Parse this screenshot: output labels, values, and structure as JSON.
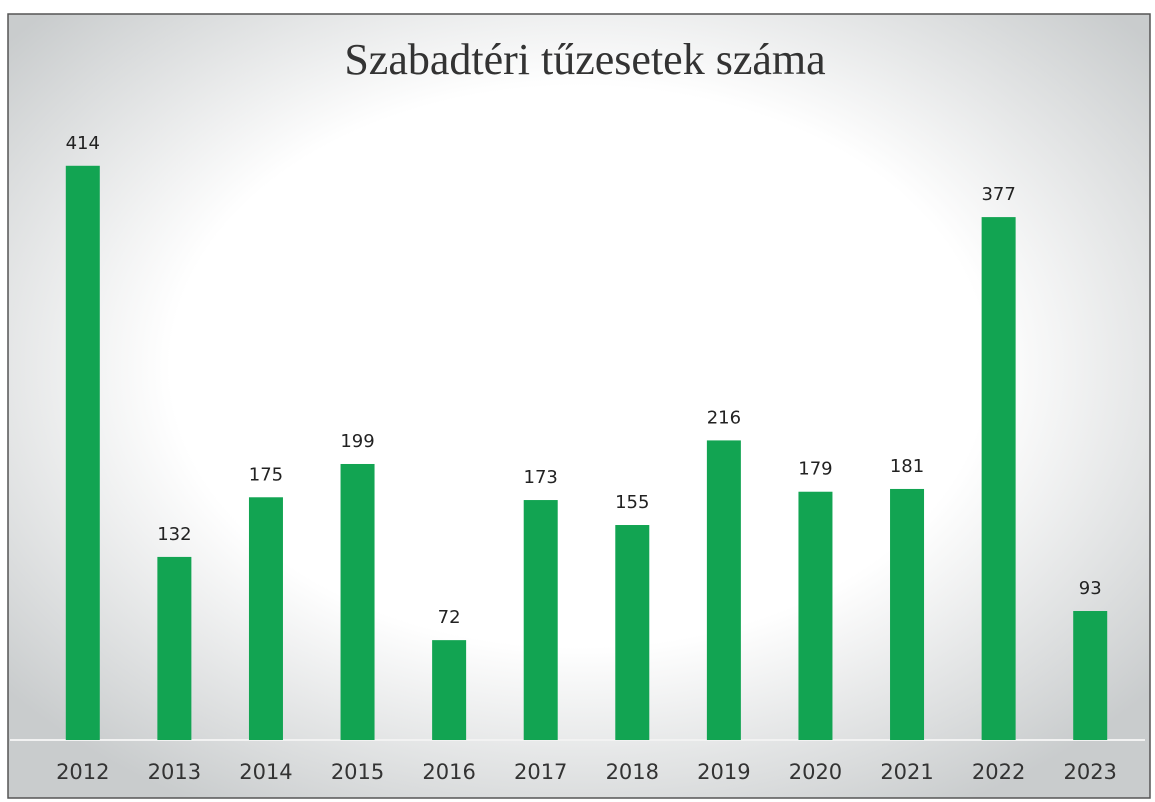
{
  "chart_data": {
    "type": "bar",
    "title": "Szabadtéri tűzesetek száma",
    "categories": [
      "2012",
      "2013",
      "2014",
      "2015",
      "2016",
      "2017",
      "2018",
      "2019",
      "2020",
      "2021",
      "2022",
      "2023"
    ],
    "values": [
      414,
      132,
      175,
      199,
      72,
      173,
      155,
      216,
      179,
      181,
      377,
      93
    ],
    "color": "#12a452"
  }
}
